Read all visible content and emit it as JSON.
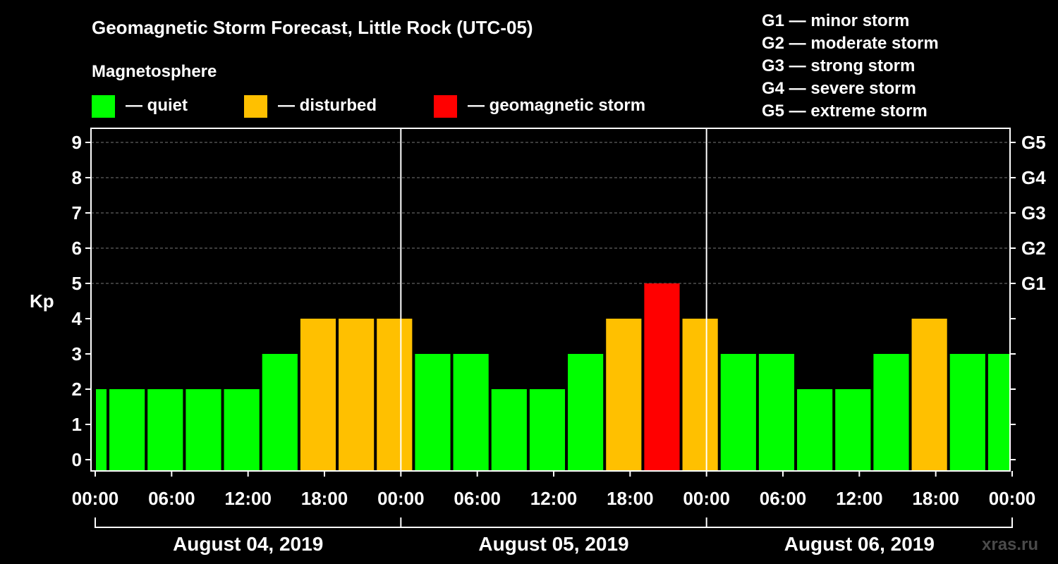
{
  "chart_data": {
    "type": "bar",
    "title": "Geomagnetic Storm Forecast, Little Rock (UTC-05)",
    "legend_title": "Magnetosphere",
    "legend": [
      {
        "key": "quiet",
        "label": "— quiet",
        "color": "#00ff00"
      },
      {
        "key": "disturbed",
        "label": "— disturbed",
        "color": "#ffc000"
      },
      {
        "key": "storm",
        "label": "— geomagnetic storm",
        "color": "#ff0000"
      }
    ],
    "storm_scale": [
      "G1 — minor storm",
      "G2 — moderate storm",
      "G3 — strong storm",
      "G4 — severe storm",
      "G5 — extreme storm"
    ],
    "ylabel": "Kp",
    "ylim": [
      0,
      9
    ],
    "yticks": [
      "0",
      "1",
      "2",
      "3",
      "4",
      "5",
      "6",
      "7",
      "8",
      "9"
    ],
    "right_axis": [
      {
        "kp": 5,
        "label": "G1"
      },
      {
        "kp": 6,
        "label": "G2"
      },
      {
        "kp": 7,
        "label": "G3"
      },
      {
        "kp": 8,
        "label": "G4"
      },
      {
        "kp": 9,
        "label": "G5"
      }
    ],
    "xticks": [
      "00:00",
      "06:00",
      "12:00",
      "18:00",
      "00:00",
      "06:00",
      "12:00",
      "18:00",
      "00:00",
      "06:00",
      "12:00",
      "18:00",
      "00:00"
    ],
    "days": [
      "August 04, 2019",
      "August 05, 2019",
      "August 06, 2019"
    ],
    "bars": [
      {
        "start": "Aug 04 00:00",
        "end": "Aug 04 01:00",
        "kp": 2,
        "level": "quiet"
      },
      {
        "start": "Aug 04 01:00",
        "end": "Aug 04 04:00",
        "kp": 2,
        "level": "quiet"
      },
      {
        "start": "Aug 04 04:00",
        "end": "Aug 04 07:00",
        "kp": 2,
        "level": "quiet"
      },
      {
        "start": "Aug 04 07:00",
        "end": "Aug 04 10:00",
        "kp": 2,
        "level": "quiet"
      },
      {
        "start": "Aug 04 10:00",
        "end": "Aug 04 13:00",
        "kp": 2,
        "level": "quiet"
      },
      {
        "start": "Aug 04 13:00",
        "end": "Aug 04 16:00",
        "kp": 3,
        "level": "quiet"
      },
      {
        "start": "Aug 04 16:00",
        "end": "Aug 04 19:00",
        "kp": 4,
        "level": "disturbed"
      },
      {
        "start": "Aug 04 19:00",
        "end": "Aug 04 22:00",
        "kp": 4,
        "level": "disturbed"
      },
      {
        "start": "Aug 04 22:00",
        "end": "Aug 05 01:00",
        "kp": 4,
        "level": "disturbed"
      },
      {
        "start": "Aug 05 01:00",
        "end": "Aug 05 04:00",
        "kp": 3,
        "level": "quiet"
      },
      {
        "start": "Aug 05 04:00",
        "end": "Aug 05 07:00",
        "kp": 3,
        "level": "quiet"
      },
      {
        "start": "Aug 05 07:00",
        "end": "Aug 05 10:00",
        "kp": 2,
        "level": "quiet"
      },
      {
        "start": "Aug 05 10:00",
        "end": "Aug 05 13:00",
        "kp": 2,
        "level": "quiet"
      },
      {
        "start": "Aug 05 13:00",
        "end": "Aug 05 16:00",
        "kp": 3,
        "level": "quiet"
      },
      {
        "start": "Aug 05 16:00",
        "end": "Aug 05 19:00",
        "kp": 4,
        "level": "disturbed"
      },
      {
        "start": "Aug 05 19:00",
        "end": "Aug 05 22:00",
        "kp": 5,
        "level": "storm"
      },
      {
        "start": "Aug 05 22:00",
        "end": "Aug 06 01:00",
        "kp": 4,
        "level": "disturbed"
      },
      {
        "start": "Aug 06 01:00",
        "end": "Aug 06 04:00",
        "kp": 3,
        "level": "quiet"
      },
      {
        "start": "Aug 06 04:00",
        "end": "Aug 06 07:00",
        "kp": 3,
        "level": "quiet"
      },
      {
        "start": "Aug 06 07:00",
        "end": "Aug 06 10:00",
        "kp": 2,
        "level": "quiet"
      },
      {
        "start": "Aug 06 10:00",
        "end": "Aug 06 13:00",
        "kp": 2,
        "level": "quiet"
      },
      {
        "start": "Aug 06 13:00",
        "end": "Aug 06 16:00",
        "kp": 3,
        "level": "quiet"
      },
      {
        "start": "Aug 06 16:00",
        "end": "Aug 06 19:00",
        "kp": 4,
        "level": "disturbed"
      },
      {
        "start": "Aug 06 19:00",
        "end": "Aug 06 22:00",
        "kp": 3,
        "level": "quiet"
      },
      {
        "start": "Aug 06 22:00",
        "end": "Aug 07 00:00",
        "kp": 3,
        "level": "quiet"
      }
    ],
    "grid": true,
    "watermark": "xras.ru"
  }
}
